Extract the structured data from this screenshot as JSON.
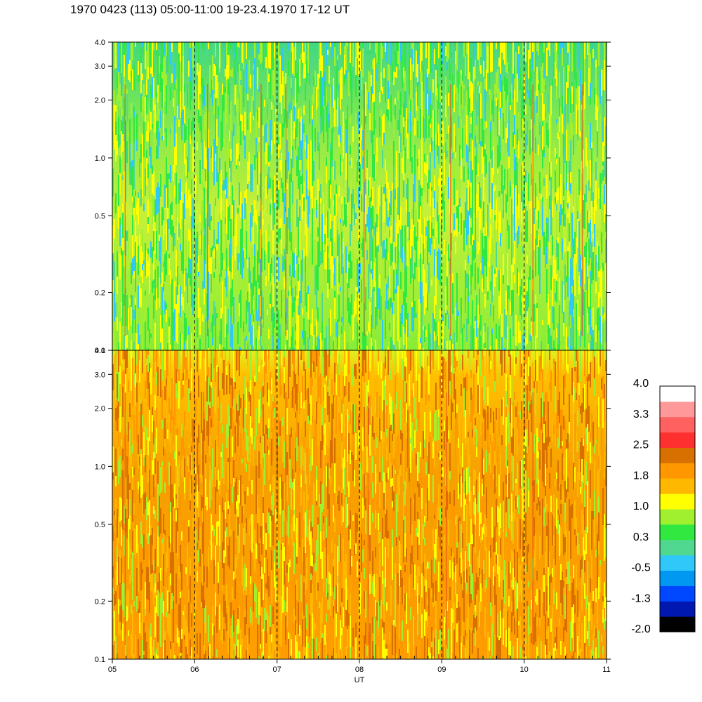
{
  "title": "1970 0423 (113) 05:00-11:00 19-23.4.1970  17-12 UT",
  "chart_data": [
    {
      "type": "heatmap",
      "panel": "upper",
      "yticks": [
        "0.1",
        "0.2",
        "0.5",
        "1.0",
        "2.0",
        "3.0",
        "4.0"
      ],
      "yscale": "log",
      "ylim": [
        0.1,
        4.0
      ],
      "dominant_levels": [
        0.3,
        1.0,
        -0.5
      ],
      "vertical_dashed_lines": [
        "06",
        "07",
        "08",
        "09",
        "10"
      ]
    },
    {
      "type": "heatmap",
      "panel": "lower",
      "yticks": [
        "0.1",
        "0.2",
        "0.5",
        "1.0",
        "2.0",
        "3.0",
        "4.0"
      ],
      "yscale": "log",
      "ylim": [
        0.1,
        4.0
      ],
      "dominant_levels": [
        1.8,
        1.0,
        2.5
      ],
      "vertical_dashed_lines": [
        "06",
        "07",
        "08",
        "09",
        "10"
      ]
    }
  ],
  "xaxis": {
    "label": "UT",
    "ticks": [
      "05",
      "06",
      "07",
      "08",
      "09",
      "10",
      "11"
    ],
    "xlim": [
      5,
      11
    ]
  },
  "colorbar": {
    "labels": [
      "4.0",
      "3.3",
      "2.5",
      "1.8",
      "1.0",
      "0.3",
      "-0.5",
      "-1.3",
      "-2.0"
    ],
    "colors": [
      "#000000",
      "#0018b0",
      "#0048ff",
      "#0098f0",
      "#30c8f8",
      "#50d890",
      "#30e840",
      "#a0f030",
      "#ffff00",
      "#ffb800",
      "#ff9800",
      "#d87000",
      "#ff3030",
      "#ff6060",
      "#ff9898",
      "#ffffff"
    ]
  }
}
